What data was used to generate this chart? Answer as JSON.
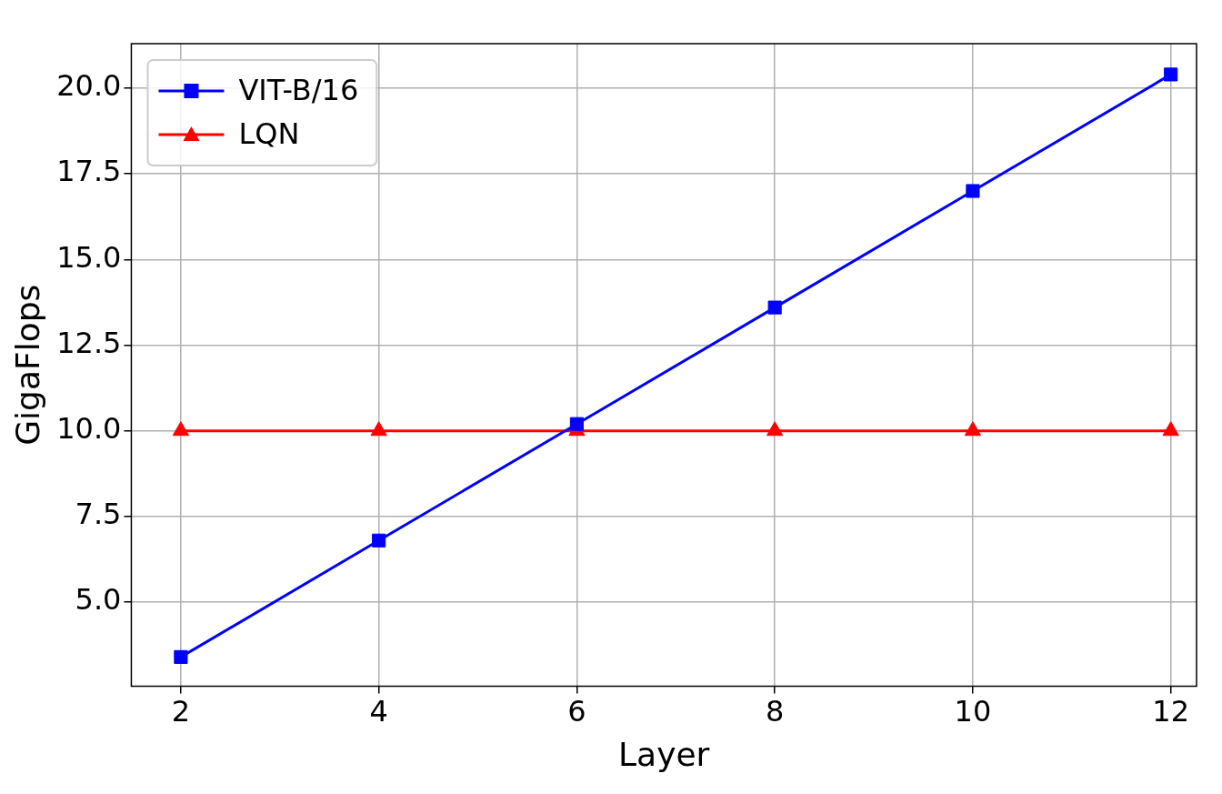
{
  "chart_data": {
    "type": "line",
    "xlabel": "Layer",
    "ylabel": "GigaFlops",
    "x": [
      2,
      4,
      6,
      8,
      10,
      12
    ],
    "series": [
      {
        "name": "VIT-B/16",
        "color": "#0000ff",
        "marker": "square",
        "values": [
          3.4,
          6.8,
          10.2,
          13.6,
          17.0,
          20.4
        ]
      },
      {
        "name": "LQN",
        "color": "#ff0000",
        "marker": "triangle",
        "values": [
          10,
          10,
          10,
          10,
          10,
          10
        ]
      }
    ],
    "xlim": [
      1.5,
      12.26
    ],
    "xticks": [
      2,
      4,
      6,
      8,
      10,
      12
    ],
    "ylim": [
      2.55,
      21.3
    ],
    "yticks": [
      {
        "value": 5,
        "label": "5.0"
      },
      {
        "value": 7.5,
        "label": "7.5"
      },
      {
        "value": 10,
        "label": "10.0"
      },
      {
        "value": 12.5,
        "label": "12.5"
      },
      {
        "value": 15,
        "label": "15.0"
      },
      {
        "value": 17.5,
        "label": "17.5"
      },
      {
        "value": 20,
        "label": "20.0"
      }
    ],
    "grid": true,
    "legend": "top left",
    "line_style": "solid"
  }
}
